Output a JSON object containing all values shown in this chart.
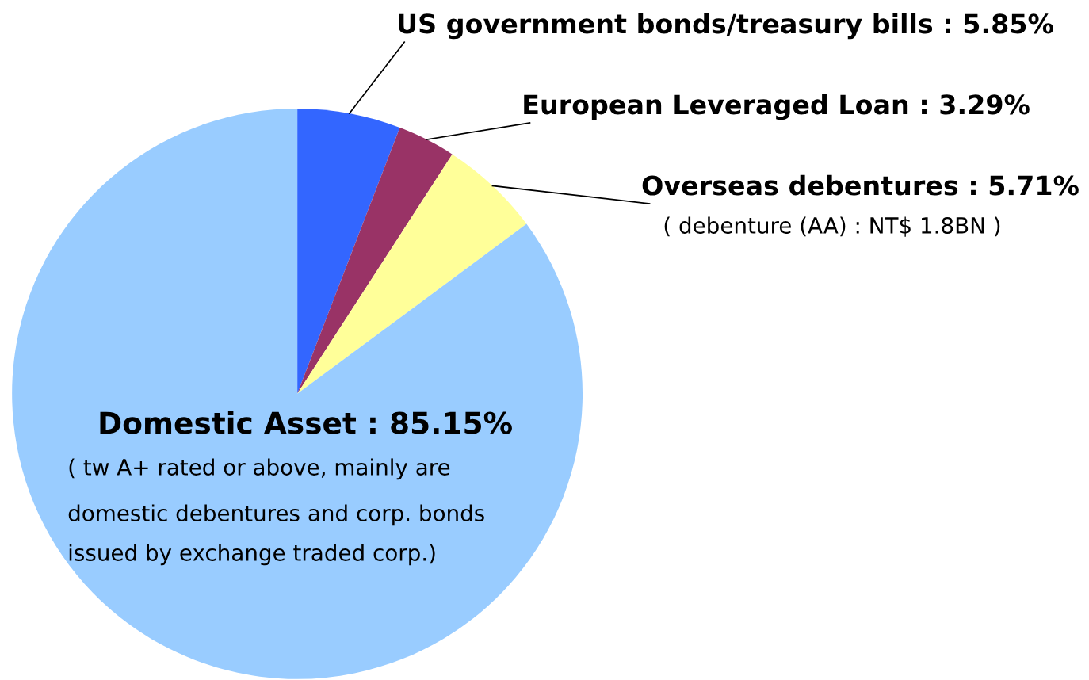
{
  "chart_data": {
    "type": "pie",
    "categories": [
      "US government bonds/treasury bills",
      "European Leveraged Loan",
      "Overseas debentures",
      "Domestic Asset"
    ],
    "values": [
      5.85,
      3.29,
      5.71,
      85.15
    ],
    "value_labels": [
      "5.85%",
      "3.29%",
      "5.71%",
      "85.15%"
    ],
    "colors": [
      "#3366ff",
      "#993366",
      "#ffff99",
      "#99ccff"
    ],
    "annotations": [
      "( debenture (AA) : NT$ 1.8BN )",
      "( tw A+ rated or above, mainly are",
      "domestic debentures and corp. bonds",
      "issued by exchange traded corp.)"
    ]
  }
}
